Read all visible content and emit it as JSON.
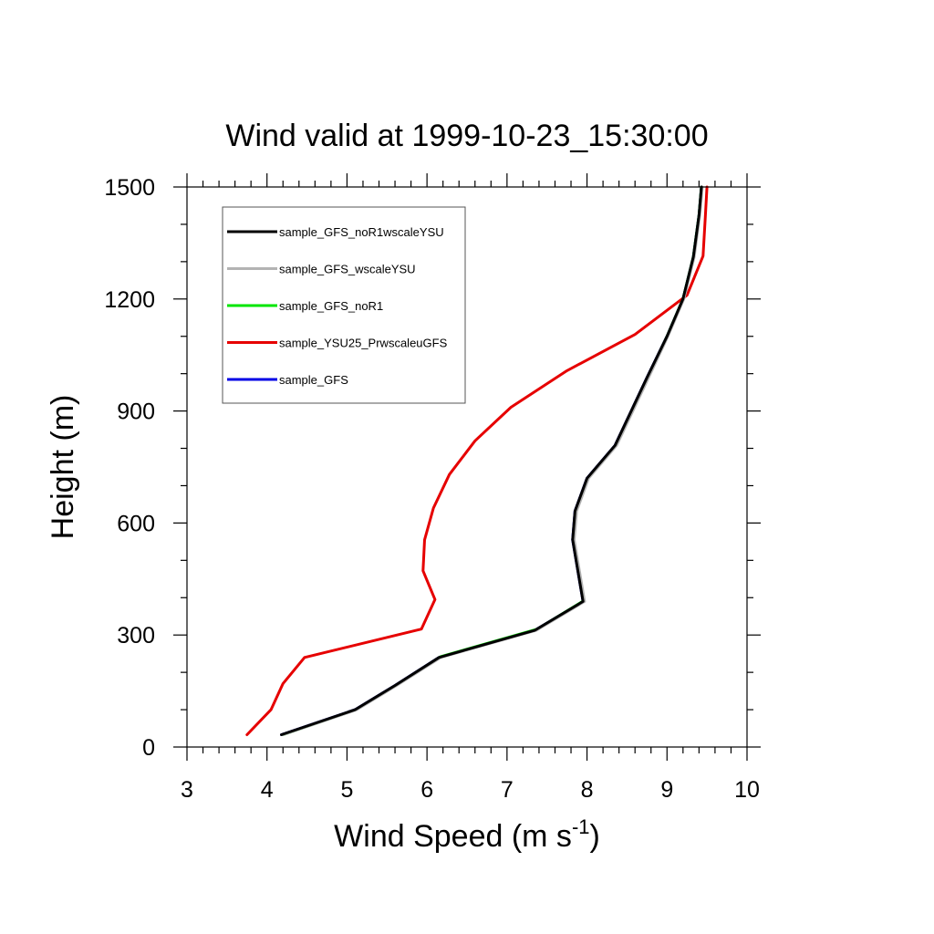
{
  "chart_data": {
    "type": "line",
    "title": "Wind valid at 1999-10-23_15:30:00",
    "xlabel": "Wind Speed (m s",
    "xlabel_sup": "-1",
    "xlabel_tail": ")",
    "ylabel": "Height (m)",
    "xlim": [
      3,
      10
    ],
    "ylim": [
      0,
      1500
    ],
    "x_ticks": [
      "3",
      "4",
      "5",
      "6",
      "7",
      "8",
      "9",
      "10"
    ],
    "y_ticks": [
      "0",
      "300",
      "600",
      "900",
      "1200",
      "1500"
    ],
    "grid": false,
    "legend_position": "top-left",
    "series": [
      {
        "name": "sample_GFS_noR1wscaleYSU",
        "color": "#000000",
        "points": [
          [
            4.18,
            33
          ],
          [
            5.1,
            100
          ],
          [
            5.6,
            165
          ],
          [
            6.15,
            240
          ],
          [
            7.35,
            313
          ],
          [
            7.95,
            390
          ],
          [
            7.82,
            555
          ],
          [
            7.85,
            632
          ],
          [
            8.0,
            720
          ],
          [
            8.35,
            808
          ],
          [
            8.75,
            990
          ],
          [
            9.0,
            1100
          ],
          [
            9.2,
            1200
          ],
          [
            9.33,
            1313
          ],
          [
            9.4,
            1425
          ],
          [
            9.43,
            1500
          ]
        ]
      },
      {
        "name": "sample_GFS_wscaleYSU",
        "color": "#b3b3b3",
        "points": [
          [
            4.2,
            33
          ],
          [
            5.12,
            100
          ],
          [
            5.62,
            165
          ],
          [
            6.17,
            240
          ],
          [
            7.37,
            313
          ],
          [
            7.97,
            390
          ],
          [
            7.84,
            555
          ],
          [
            7.87,
            632
          ],
          [
            8.02,
            720
          ],
          [
            8.37,
            808
          ],
          [
            8.77,
            990
          ],
          [
            9.01,
            1100
          ],
          [
            9.21,
            1200
          ],
          [
            9.34,
            1313
          ],
          [
            9.41,
            1425
          ],
          [
            9.44,
            1500
          ]
        ]
      },
      {
        "name": "sample_GFS_noR1",
        "color": "#00e600",
        "points": [
          [
            4.2,
            33
          ],
          [
            5.11,
            100
          ],
          [
            5.62,
            166
          ],
          [
            6.17,
            242
          ],
          [
            7.38,
            316
          ],
          [
            7.96,
            392
          ],
          [
            7.83,
            555
          ],
          [
            7.86,
            632
          ],
          [
            8.01,
            720
          ],
          [
            8.36,
            808
          ],
          [
            8.76,
            990
          ],
          [
            9.0,
            1100
          ],
          [
            9.2,
            1200
          ],
          [
            9.33,
            1313
          ],
          [
            9.4,
            1425
          ],
          [
            9.43,
            1500
          ]
        ]
      },
      {
        "name": "sample_YSU25_PrwscaleuGFS",
        "color": "#e60000",
        "points": [
          [
            3.75,
            33
          ],
          [
            4.05,
            100
          ],
          [
            4.2,
            170
          ],
          [
            4.47,
            240
          ],
          [
            5.93,
            316
          ],
          [
            6.1,
            395
          ],
          [
            5.95,
            472
          ],
          [
            5.97,
            555
          ],
          [
            6.08,
            640
          ],
          [
            6.28,
            730
          ],
          [
            6.6,
            820
          ],
          [
            7.05,
            910
          ],
          [
            7.75,
            1008
          ],
          [
            8.6,
            1105
          ],
          [
            9.25,
            1210
          ],
          [
            9.45,
            1315
          ],
          [
            9.48,
            1425
          ],
          [
            9.5,
            1500
          ]
        ]
      },
      {
        "name": "sample_GFS",
        "color": "#0000e6",
        "points": [
          [
            4.18,
            33
          ],
          [
            5.1,
            100
          ],
          [
            5.6,
            165
          ],
          [
            6.15,
            240
          ],
          [
            7.35,
            313
          ],
          [
            7.95,
            390
          ],
          [
            7.82,
            555
          ],
          [
            7.85,
            632
          ],
          [
            8.0,
            720
          ],
          [
            8.35,
            808
          ],
          [
            8.75,
            990
          ],
          [
            9.0,
            1100
          ],
          [
            9.2,
            1200
          ],
          [
            9.33,
            1313
          ],
          [
            9.4,
            1425
          ],
          [
            9.43,
            1500
          ]
        ]
      }
    ]
  }
}
